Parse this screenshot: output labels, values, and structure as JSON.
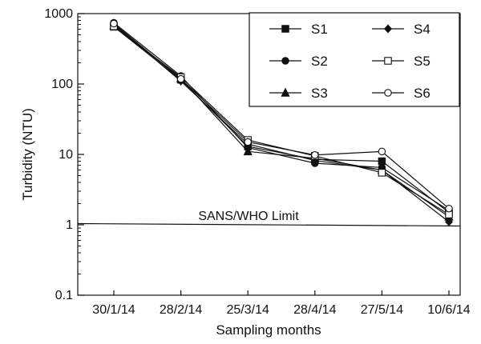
{
  "chart_data": {
    "type": "line",
    "xlabel": "Sampling months",
    "ylabel": "Turbidity (NTU)",
    "yscale": "log",
    "ylim": [
      0.1,
      1000
    ],
    "yticks": [
      "0.1",
      "1",
      "10",
      "100",
      "1000"
    ],
    "categories": [
      "30/1/14",
      "28/2/14",
      "25/3/14",
      "28/4/14",
      "27/5/14",
      "10/6/14"
    ],
    "grid": false,
    "legend_position": "top-right",
    "series": [
      {
        "name": "S1",
        "marker": "square-filled",
        "values": [
          650,
          115,
          13,
          8.5,
          8,
          1.5
        ]
      },
      {
        "name": "S2",
        "marker": "circle-filled",
        "values": [
          740,
          130,
          12.5,
          7.5,
          6.5,
          1.6
        ]
      },
      {
        "name": "S3",
        "marker": "triangle-filled",
        "values": [
          680,
          120,
          11,
          8.8,
          6,
          1.3
        ]
      },
      {
        "name": "S4",
        "marker": "diamond-filled",
        "values": [
          700,
          110,
          14,
          8.2,
          6,
          1.1
        ]
      },
      {
        "name": "S5",
        "marker": "square-open",
        "values": [
          660,
          125,
          16,
          9.5,
          5.5,
          1.4
        ]
      },
      {
        "name": "S6",
        "marker": "circle-open",
        "values": [
          720,
          118,
          15,
          9.8,
          11,
          1.7
        ]
      }
    ],
    "reference_line": {
      "label": "SANS/WHO Limit",
      "y": 1
    }
  }
}
